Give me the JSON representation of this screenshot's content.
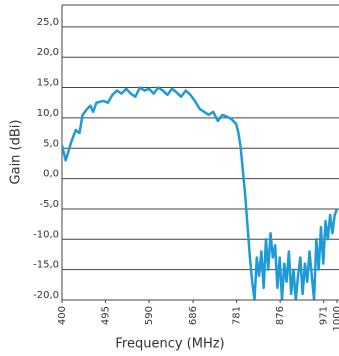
{
  "chart_data": {
    "type": "line",
    "x_label": "Frequency (MHz)",
    "y_label": "Gain (dBi)",
    "xlim": [
      400,
      1000
    ],
    "xticks": [
      400,
      495,
      590,
      686,
      781,
      876,
      971,
      1000
    ],
    "ylim": [
      -20,
      28.6
    ],
    "yticks": [
      {
        "value": -20,
        "label": "-20,0"
      },
      {
        "value": -15,
        "label": "-15,0"
      },
      {
        "value": -10,
        "label": "-10,0"
      },
      {
        "value": -5,
        "label": "-5,0"
      },
      {
        "value": 0,
        "label": "0,0"
      },
      {
        "value": 5,
        "label": "5,0"
      },
      {
        "value": 10,
        "label": "10,0"
      },
      {
        "value": 15,
        "label": "15,0"
      },
      {
        "value": 20,
        "label": "20,0"
      },
      {
        "value": 25,
        "label": "25,0"
      }
    ],
    "grid": true,
    "series": [
      {
        "color": "#1e9ad6",
        "x": [
          400,
          408,
          420,
          430,
          438,
          445,
          455,
          462,
          468,
          475,
          490,
          500,
          510,
          520,
          530,
          540,
          550,
          560,
          570,
          580,
          590,
          600,
          610,
          620,
          630,
          640,
          650,
          660,
          670,
          680,
          690,
          700,
          710,
          720,
          730,
          740,
          750,
          760,
          770,
          780,
          785,
          790,
          795,
          800,
          805,
          810,
          815,
          820,
          825,
          830,
          835,
          840,
          845,
          850,
          855,
          860,
          865,
          870,
          875,
          880,
          885,
          890,
          895,
          900,
          905,
          910,
          915,
          920,
          925,
          930,
          935,
          940,
          945,
          950,
          955,
          960,
          965,
          970,
          975,
          980,
          985,
          990,
          995,
          1000
        ],
        "values": [
          5.5,
          3.0,
          6,
          8,
          7.5,
          10.5,
          11.5,
          12,
          11,
          12.5,
          12.8,
          12.5,
          13.8,
          14.5,
          14,
          14.8,
          14,
          13.5,
          15,
          14.5,
          14.8,
          14,
          15,
          14.5,
          13.8,
          14.8,
          14.2,
          13.5,
          14.5,
          13.8,
          12.8,
          11.5,
          11,
          10.5,
          11,
          9.5,
          10.5,
          10.2,
          9.8,
          9,
          7.5,
          5,
          1,
          -3,
          -8,
          -13,
          -17,
          -20,
          -13,
          -16,
          -12,
          -18,
          -10,
          -15,
          -9,
          -13,
          -11,
          -18,
          -13,
          -20,
          -14,
          -17,
          -12,
          -19,
          -15,
          -20,
          -16,
          -13,
          -19,
          -14,
          -17,
          -12,
          -16,
          -20,
          -10,
          -15,
          -8,
          -14,
          -7,
          -10,
          -6,
          -9,
          -6,
          -5
        ]
      }
    ]
  }
}
